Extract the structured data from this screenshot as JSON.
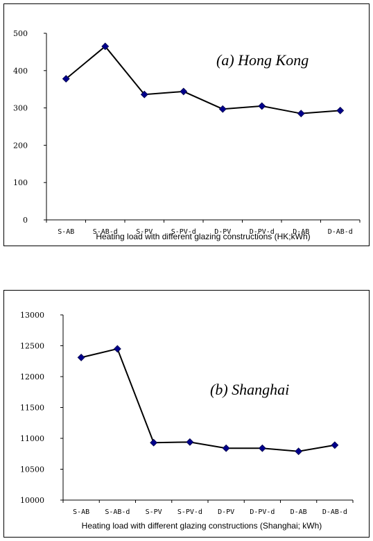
{
  "chart_data": [
    {
      "type": "line",
      "annotation": "(a) Hong Kong",
      "xlabel": "Heating load with different glazing constructions (HK;kWh)",
      "ylabel": "",
      "categories": [
        "S-AB",
        "S-AB-d",
        "S-PV",
        "S-PV-d",
        "D-PV",
        "D-PV-d",
        "D-AB",
        "D-AB-d"
      ],
      "series": [
        {
          "values": [
            378,
            465,
            336,
            344,
            297,
            305,
            285,
            293
          ],
          "color": "#00008B"
        }
      ],
      "ylim": [
        0,
        500
      ],
      "yticks": [
        0,
        100,
        200,
        300,
        400,
        500
      ],
      "grid": false
    },
    {
      "type": "line",
      "annotation": "(b) Shanghai",
      "xlabel": "Heating load with different glazing constructions (Shanghai; kWh)",
      "ylabel": "",
      "categories": [
        "S-AB",
        "S-AB-d",
        "S-PV",
        "S-PV-d",
        "D-PV",
        "D-PV-d",
        "D-AB",
        "D-AB-d"
      ],
      "series": [
        {
          "values": [
            12310,
            12450,
            10930,
            10940,
            10840,
            10840,
            10790,
            10890
          ],
          "color": "#00008B"
        }
      ],
      "ylim": [
        10000,
        13000
      ],
      "yticks": [
        10000,
        10500,
        11000,
        11500,
        12000,
        12500,
        13000
      ],
      "grid": false
    }
  ]
}
